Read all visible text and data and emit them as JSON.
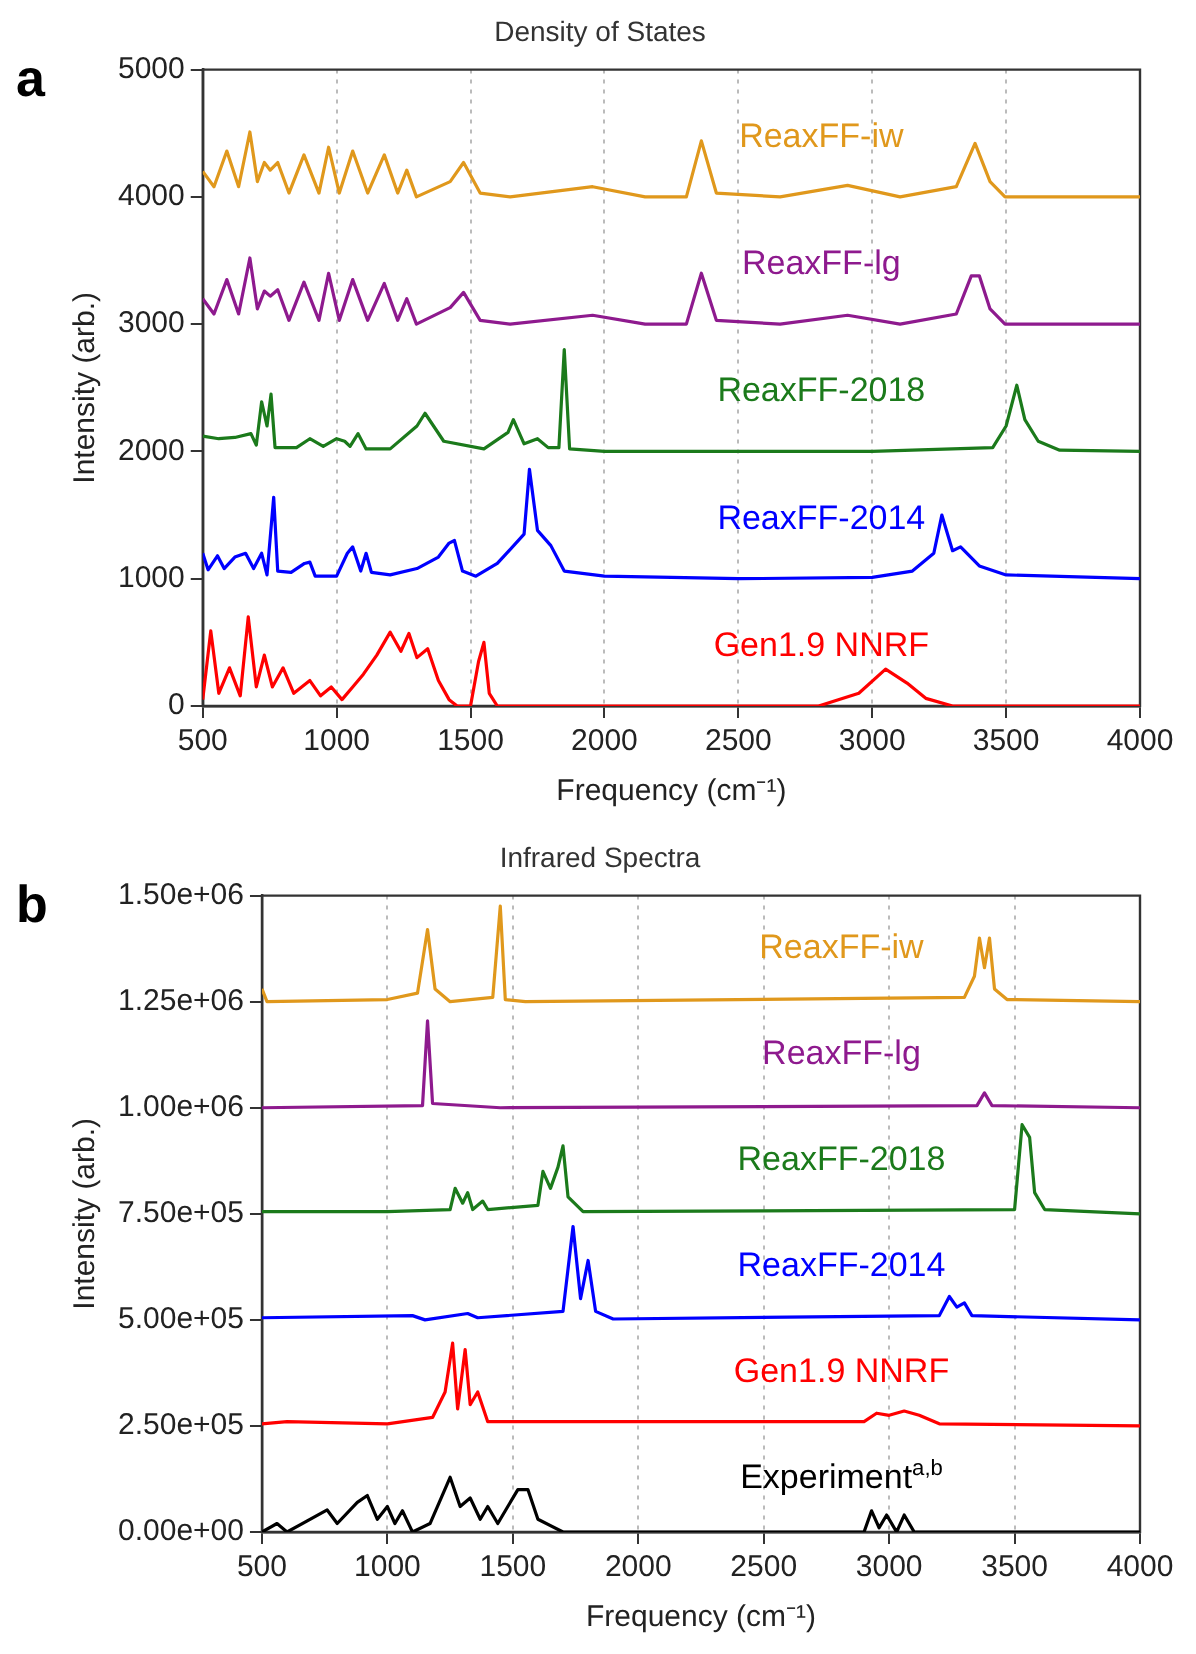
{
  "chart_data": [
    {
      "type": "line",
      "title": "Density of States",
      "xlabel": "Frequency (cm⁻¹)",
      "ylabel": "Intensity (arb.)",
      "annotations": [
        "a"
      ],
      "xlim": [
        500,
        4000
      ],
      "xticks": [
        500,
        1000,
        1500,
        2000,
        2500,
        3000,
        3500,
        4000
      ],
      "ylim": [
        0,
        5000
      ],
      "yticks": [
        0,
        1000,
        2000,
        3000,
        4000,
        5000
      ],
      "grid": "x",
      "legend": false,
      "marker": "none",
      "line_style": "solid",
      "series": [
        {
          "name": "ReaxFF-iw",
          "color": "#e0981c",
          "x": [
            500,
            542,
            590,
            634,
            676,
            704,
            730,
            752,
            780,
            822,
            878,
            934,
            970,
            1010,
            1060,
            1116,
            1178,
            1228,
            1262,
            1298,
            1424,
            1474,
            1536,
            1648,
            1956,
            2152,
            2306,
            2362,
            2418,
            2656,
            2908,
            3104,
            3314,
            3384,
            3440,
            3496,
            4000
          ],
          "values": [
            4200,
            4080,
            4360,
            4080,
            4510,
            4120,
            4270,
            4210,
            4270,
            4030,
            4330,
            4030,
            4390,
            4030,
            4360,
            4030,
            4330,
            4030,
            4210,
            4000,
            4120,
            4270,
            4030,
            4000,
            4080,
            4000,
            4000,
            4440,
            4030,
            4000,
            4090,
            4000,
            4080,
            4420,
            4120,
            4000,
            4000
          ]
        },
        {
          "name": "ReaxFF-lg",
          "color": "#8e1a8e",
          "x": [
            500,
            542,
            590,
            634,
            676,
            704,
            730,
            752,
            780,
            822,
            878,
            934,
            970,
            1010,
            1060,
            1116,
            1178,
            1228,
            1262,
            1298,
            1424,
            1474,
            1536,
            1648,
            1956,
            2152,
            2306,
            2362,
            2418,
            2656,
            2908,
            3104,
            3314,
            3370,
            3400,
            3440,
            3496,
            4000
          ],
          "values": [
            3200,
            3080,
            3350,
            3080,
            3520,
            3120,
            3260,
            3220,
            3270,
            3030,
            3330,
            3030,
            3400,
            3030,
            3350,
            3030,
            3320,
            3030,
            3200,
            3000,
            3130,
            3250,
            3030,
            3000,
            3070,
            3000,
            3000,
            3400,
            3030,
            3000,
            3070,
            3000,
            3080,
            3380,
            3380,
            3120,
            3000,
            3000
          ]
        },
        {
          "name": "ReaxFF-2018",
          "color": "#1b7a1b",
          "x": [
            500,
            560,
            620,
            680,
            700,
            720,
            740,
            755,
            770,
            850,
            900,
            950,
            1000,
            1030,
            1050,
            1080,
            1110,
            1200,
            1300,
            1330,
            1400,
            1550,
            1640,
            1660,
            1700,
            1750,
            1790,
            1830,
            1850,
            1870,
            2000,
            3000,
            3450,
            3500,
            3540,
            3570,
            3620,
            3700,
            4000
          ],
          "values": [
            2120,
            2100,
            2110,
            2140,
            2050,
            2390,
            2200,
            2450,
            2030,
            2030,
            2100,
            2040,
            2100,
            2080,
            2040,
            2140,
            2020,
            2020,
            2200,
            2300,
            2080,
            2020,
            2150,
            2250,
            2060,
            2100,
            2030,
            2030,
            2800,
            2020,
            2000,
            2000,
            2030,
            2200,
            2520,
            2250,
            2080,
            2010,
            2000
          ]
        },
        {
          "name": "ReaxFF-2014",
          "color": "#0000ff",
          "x": [
            500,
            520,
            555,
            580,
            620,
            660,
            690,
            720,
            740,
            765,
            780,
            830,
            880,
            900,
            920,
            1000,
            1040,
            1060,
            1090,
            1110,
            1130,
            1200,
            1300,
            1380,
            1420,
            1440,
            1470,
            1520,
            1600,
            1700,
            1720,
            1750,
            1800,
            1850,
            2000,
            2500,
            3000,
            3150,
            3230,
            3260,
            3300,
            3330,
            3400,
            3500,
            4000
          ],
          "values": [
            1200,
            1070,
            1180,
            1080,
            1170,
            1200,
            1080,
            1200,
            1030,
            1640,
            1060,
            1050,
            1120,
            1130,
            1020,
            1020,
            1200,
            1250,
            1060,
            1200,
            1050,
            1030,
            1080,
            1170,
            1280,
            1300,
            1060,
            1020,
            1120,
            1350,
            1860,
            1380,
            1260,
            1060,
            1020,
            1000,
            1010,
            1060,
            1200,
            1500,
            1220,
            1250,
            1100,
            1030,
            1000
          ]
        },
        {
          "name": "Gen1.9 NNRF",
          "color": "#ff0000",
          "x": [
            500,
            530,
            560,
            600,
            640,
            670,
            700,
            730,
            760,
            800,
            840,
            900,
            940,
            980,
            1020,
            1060,
            1100,
            1150,
            1200,
            1240,
            1270,
            1300,
            1340,
            1380,
            1420,
            1450,
            1500,
            1530,
            1550,
            1570,
            1600,
            2800,
            2950,
            3050,
            3130,
            3200,
            3300,
            4000
          ],
          "values": [
            50,
            590,
            100,
            300,
            80,
            700,
            150,
            400,
            150,
            300,
            100,
            200,
            80,
            150,
            50,
            150,
            250,
            400,
            580,
            430,
            570,
            380,
            450,
            200,
            50,
            0,
            0,
            350,
            500,
            100,
            0,
            0,
            100,
            290,
            180,
            60,
            0,
            0
          ]
        }
      ]
    },
    {
      "type": "line",
      "title": "Infrared Spectra",
      "xlabel": "Frequency (cm⁻¹)",
      "ylabel": "Intensity (arb.)",
      "annotations": [
        "b"
      ],
      "xlim": [
        500,
        4000
      ],
      "xticks": [
        500,
        1000,
        1500,
        2000,
        2500,
        3000,
        3500,
        4000
      ],
      "ylim": [
        0,
        1500000
      ],
      "yticks": [
        {
          "value": 0,
          "label": "0.00e+00"
        },
        {
          "value": 250000,
          "label": "2.50e+05"
        },
        {
          "value": 500000,
          "label": "5.00e+05"
        },
        {
          "value": 750000,
          "label": "7.50e+05"
        },
        {
          "value": 1000000,
          "label": "1.00e+06"
        },
        {
          "value": 1250000,
          "label": "1.25e+06"
        },
        {
          "value": 1500000,
          "label": "1.50e+06"
        }
      ],
      "grid": "x",
      "legend": false,
      "marker": "none",
      "line_style": "solid",
      "series": [
        {
          "name": "ReaxFF-iw",
          "color": "#e0981c",
          "x": [
            500,
            520,
            1000,
            1120,
            1160,
            1190,
            1250,
            1420,
            1450,
            1470,
            1550,
            3300,
            3340,
            3360,
            3380,
            3400,
            3420,
            3470,
            4000
          ],
          "values": [
            1280000,
            1250000,
            1255000,
            1270000,
            1420000,
            1280000,
            1250000,
            1260000,
            1475000,
            1255000,
            1250000,
            1260000,
            1310000,
            1400000,
            1330000,
            1400000,
            1280000,
            1255000,
            1250000
          ]
        },
        {
          "name": "ReaxFF-lg",
          "color": "#8e1a8e",
          "x": [
            500,
            1140,
            1160,
            1180,
            1450,
            3350,
            3380,
            3410,
            4000
          ],
          "values": [
            1000000,
            1005000,
            1205000,
            1010000,
            1000000,
            1005000,
            1035000,
            1005000,
            1000000
          ]
        },
        {
          "name": "ReaxFF-2018",
          "color": "#1b7a1b",
          "x": [
            500,
            1000,
            1250,
            1270,
            1300,
            1320,
            1340,
            1380,
            1400,
            1600,
            1620,
            1650,
            1680,
            1700,
            1720,
            1780,
            3500,
            3530,
            3560,
            3580,
            3620,
            4000
          ],
          "values": [
            755000,
            755000,
            760000,
            810000,
            775000,
            800000,
            760000,
            780000,
            760000,
            770000,
            850000,
            810000,
            860000,
            910000,
            790000,
            755000,
            760000,
            960000,
            930000,
            800000,
            760000,
            750000
          ]
        },
        {
          "name": "ReaxFF-2014",
          "color": "#0000ff",
          "x": [
            500,
            1100,
            1150,
            1320,
            1360,
            1700,
            1740,
            1770,
            1800,
            1830,
            1900,
            3200,
            3240,
            3270,
            3300,
            3330,
            4000
          ],
          "values": [
            505000,
            510000,
            500000,
            515000,
            505000,
            520000,
            720000,
            550000,
            640000,
            520000,
            502000,
            510000,
            555000,
            530000,
            540000,
            510000,
            500000
          ]
        },
        {
          "name": "Gen1.9 NNRF",
          "color": "#ff0000",
          "x": [
            500,
            600,
            1000,
            1180,
            1230,
            1260,
            1280,
            1310,
            1330,
            1360,
            1400,
            1500,
            2900,
            2950,
            3000,
            3060,
            3120,
            3200,
            4000
          ],
          "values": [
            255000,
            260000,
            255000,
            270000,
            330000,
            445000,
            290000,
            430000,
            300000,
            330000,
            260000,
            260000,
            260000,
            280000,
            275000,
            285000,
            275000,
            255000,
            250000
          ]
        },
        {
          "name": "Experiment$^{a,b}$",
          "color": "#000000",
          "x": [
            500,
            560,
            600,
            760,
            800,
            880,
            920,
            960,
            1000,
            1030,
            1060,
            1100,
            1170,
            1250,
            1290,
            1330,
            1370,
            1400,
            1440,
            1480,
            1520,
            1560,
            1600,
            1700,
            2900,
            2930,
            2960,
            2990,
            3030,
            3060,
            3100,
            4000
          ],
          "values": [
            0,
            20000,
            0,
            52000,
            20000,
            70000,
            86000,
            30000,
            60000,
            20000,
            50000,
            0,
            20000,
            129000,
            60000,
            80000,
            30000,
            60000,
            20000,
            60000,
            100000,
            100000,
            30000,
            0,
            0,
            50000,
            10000,
            40000,
            0,
            40000,
            0,
            0
          ]
        }
      ]
    }
  ]
}
